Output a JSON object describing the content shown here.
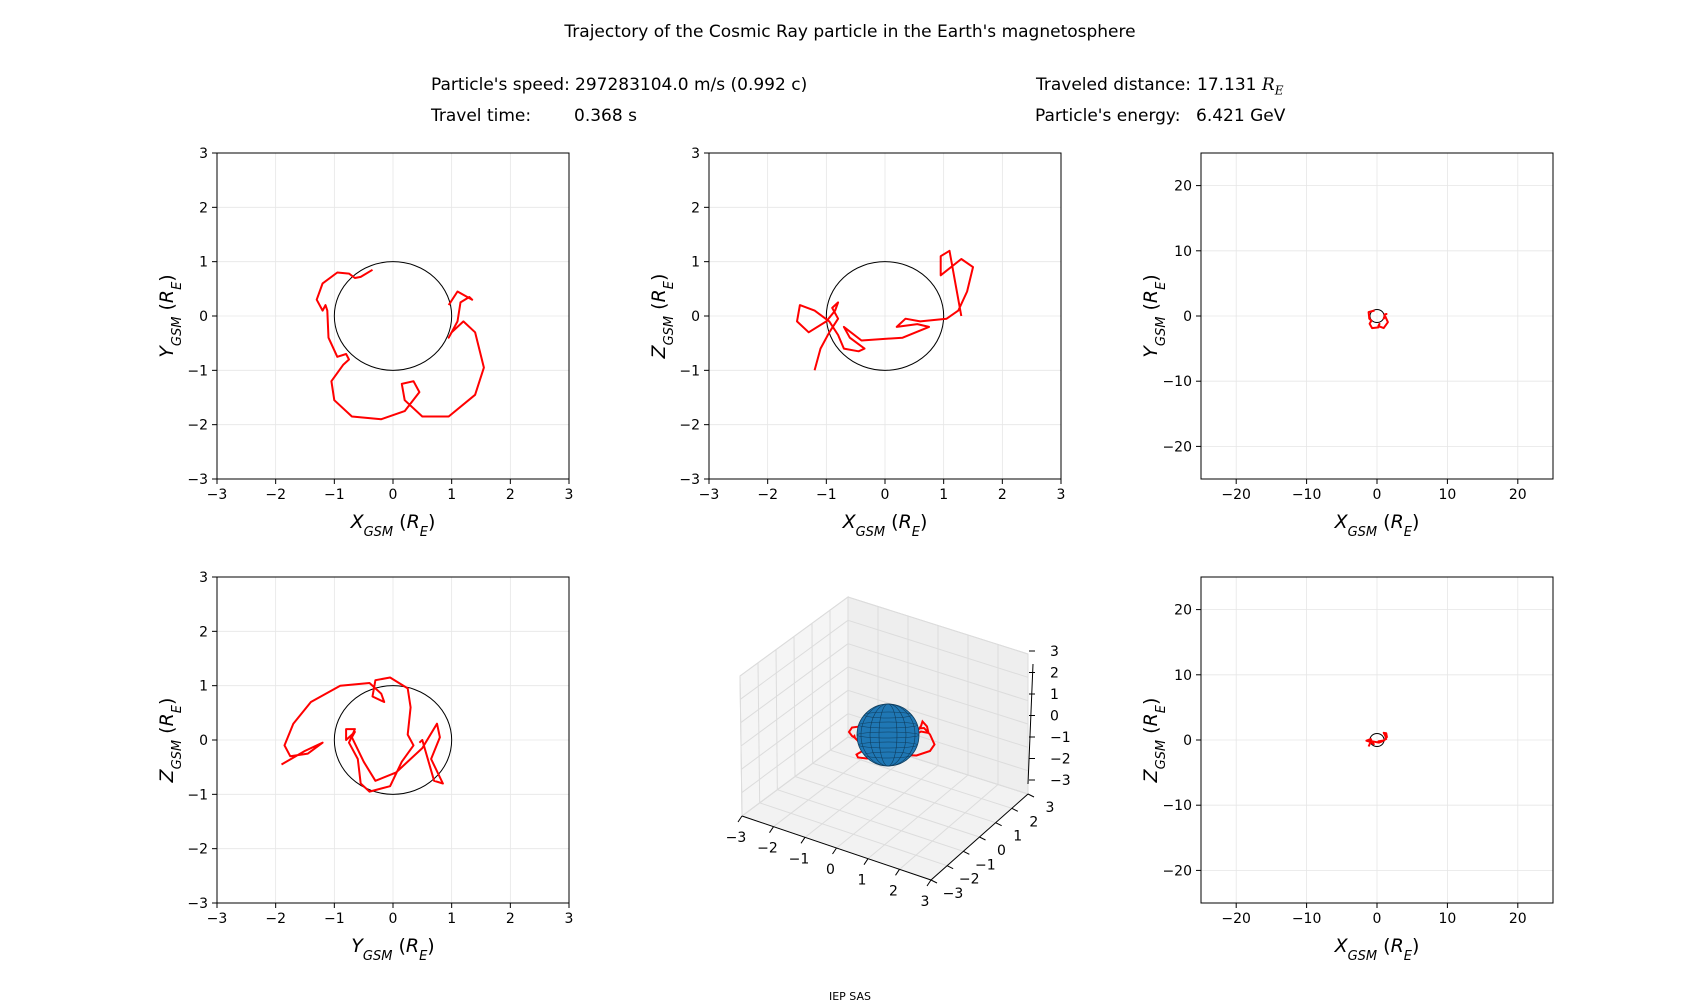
{
  "title": "Trajectory of the Cosmic Ray particle in the Earth's magnetosphere",
  "info": {
    "speed_label": "Particle's speed:",
    "speed_value": "297283104.0 m/s (0.992 c)",
    "time_label": "Travel time:",
    "time_value": "0.368 s",
    "distance_label": "Traveled distance:",
    "distance_value": "17.131",
    "energy_label": "Particle's energy:",
    "energy_value": "6.421 GeV"
  },
  "footer": "IEP SAS",
  "colors": {
    "trajectory": "#ff0000",
    "earth_outline": "#000000",
    "earth_sphere": "#1f77b4",
    "grid": "#e6e6e6"
  },
  "chart_data": [
    {
      "type": "line",
      "xlabel_base": "X",
      "xlabel_sub": "GSM",
      "ylabel_base": "Y",
      "ylabel_sub": "GSM",
      "unit_base": "R",
      "unit_sub": "E",
      "xlim": [
        -3,
        3
      ],
      "ylim": [
        -3,
        3
      ],
      "xticks": [
        -3,
        -2,
        -1,
        0,
        1,
        2,
        3
      ],
      "yticks": [
        -3,
        -2,
        -1,
        0,
        1,
        2,
        3
      ],
      "grid": true,
      "earth_radius": 1,
      "trajectory": [
        [
          -0.35,
          0.85
        ],
        [
          -0.55,
          0.72
        ],
        [
          -0.65,
          0.7
        ],
        [
          -0.75,
          0.78
        ],
        [
          -0.95,
          0.8
        ],
        [
          -1.2,
          0.6
        ],
        [
          -1.3,
          0.3
        ],
        [
          -1.2,
          0.1
        ],
        [
          -1.15,
          0.2
        ],
        [
          -1.12,
          0.1
        ],
        [
          -1.1,
          -0.4
        ],
        [
          -0.95,
          -0.75
        ],
        [
          -0.8,
          -0.7
        ],
        [
          -0.75,
          -0.8
        ],
        [
          -0.85,
          -0.9
        ],
        [
          -1.05,
          -1.2
        ],
        [
          -1.0,
          -1.55
        ],
        [
          -0.7,
          -1.85
        ],
        [
          -0.2,
          -1.9
        ],
        [
          0.2,
          -1.75
        ],
        [
          0.45,
          -1.4
        ],
        [
          0.35,
          -1.2
        ],
        [
          0.15,
          -1.25
        ],
        [
          0.2,
          -1.55
        ],
        [
          0.5,
          -1.85
        ],
        [
          0.95,
          -1.85
        ],
        [
          1.4,
          -1.45
        ],
        [
          1.55,
          -0.95
        ],
        [
          1.4,
          -0.3
        ],
        [
          1.2,
          -0.1
        ],
        [
          1.0,
          -0.3
        ],
        [
          0.95,
          -0.4
        ],
        [
          1.1,
          -0.1
        ],
        [
          1.15,
          0.25
        ],
        [
          1.3,
          0.35
        ],
        [
          1.35,
          0.3
        ],
        [
          1.1,
          0.45
        ],
        [
          0.95,
          0.2
        ]
      ]
    },
    {
      "type": "line",
      "xlabel_base": "X",
      "xlabel_sub": "GSM",
      "ylabel_base": "Z",
      "ylabel_sub": "GSM",
      "unit_base": "R",
      "unit_sub": "E",
      "xlim": [
        -3,
        3
      ],
      "ylim": [
        -3,
        3
      ],
      "xticks": [
        -3,
        -2,
        -1,
        0,
        1,
        2,
        3
      ],
      "yticks": [
        -3,
        -2,
        -1,
        0,
        1,
        2,
        3
      ],
      "grid": true,
      "earth_radius": 1,
      "trajectory": [
        [
          -1.2,
          -1.0
        ],
        [
          -1.1,
          -0.6
        ],
        [
          -0.95,
          -0.3
        ],
        [
          -0.8,
          -0.05
        ],
        [
          -0.9,
          0.15
        ],
        [
          -0.8,
          0.25
        ],
        [
          -0.85,
          0.1
        ],
        [
          -1.0,
          -0.1
        ],
        [
          -1.3,
          -0.3
        ],
        [
          -1.5,
          -0.1
        ],
        [
          -1.45,
          0.2
        ],
        [
          -1.2,
          0.1
        ],
        [
          -0.95,
          -0.1
        ],
        [
          -0.8,
          -0.35
        ],
        [
          -0.7,
          -0.6
        ],
        [
          -0.45,
          -0.65
        ],
        [
          -0.35,
          -0.6
        ],
        [
          -0.6,
          -0.4
        ],
        [
          -0.7,
          -0.2
        ],
        [
          -0.4,
          -0.45
        ],
        [
          0.3,
          -0.4
        ],
        [
          0.75,
          -0.2
        ],
        [
          0.55,
          -0.15
        ],
        [
          0.2,
          -0.2
        ],
        [
          0.35,
          -0.05
        ],
        [
          0.6,
          -0.1
        ],
        [
          1.05,
          -0.05
        ],
        [
          1.25,
          0.1
        ],
        [
          1.4,
          0.45
        ],
        [
          1.5,
          0.9
        ],
        [
          1.3,
          1.05
        ],
        [
          0.95,
          0.75
        ],
        [
          0.95,
          1.1
        ],
        [
          1.1,
          1.2
        ],
        [
          1.2,
          0.6
        ],
        [
          1.3,
          0.0
        ]
      ]
    },
    {
      "type": "line",
      "xlabel_base": "X",
      "xlabel_sub": "GSM",
      "ylabel_base": "Y",
      "ylabel_sub": "GSM",
      "unit_base": "R",
      "unit_sub": "E",
      "xlim": [
        -25,
        25
      ],
      "ylim": [
        -25,
        25
      ],
      "xticks": [
        -20,
        -10,
        0,
        10,
        20
      ],
      "yticks": [
        -20,
        -10,
        0,
        10,
        20
      ],
      "grid": true,
      "earth_radius": 1,
      "trajectory": [
        [
          -0.35,
          0.85
        ],
        [
          -1.2,
          0.6
        ],
        [
          -1.15,
          0.2
        ],
        [
          -1.1,
          -0.4
        ],
        [
          -0.8,
          -0.7
        ],
        [
          -1.05,
          -1.2
        ],
        [
          -0.7,
          -1.85
        ],
        [
          0.2,
          -1.75
        ],
        [
          0.35,
          -1.2
        ],
        [
          0.2,
          -1.55
        ],
        [
          0.95,
          -1.85
        ],
        [
          1.55,
          -0.95
        ],
        [
          1.2,
          -0.1
        ],
        [
          0.95,
          -0.4
        ],
        [
          1.15,
          0.25
        ],
        [
          1.35,
          0.3
        ],
        [
          0.95,
          0.2
        ]
      ]
    },
    {
      "type": "line",
      "xlabel_base": "Y",
      "xlabel_sub": "GSM",
      "ylabel_base": "Z",
      "ylabel_sub": "GSM",
      "unit_base": "R",
      "unit_sub": "E",
      "xlim": [
        -3,
        3
      ],
      "ylim": [
        -3,
        3
      ],
      "xticks": [
        -3,
        -2,
        -1,
        0,
        1,
        2,
        3
      ],
      "yticks": [
        -3,
        -2,
        -1,
        0,
        1,
        2,
        3
      ],
      "grid": true,
      "earth_radius": 1,
      "trajectory": [
        [
          -1.9,
          -0.45
        ],
        [
          -1.5,
          -0.2
        ],
        [
          -1.2,
          -0.05
        ],
        [
          -1.45,
          -0.25
        ],
        [
          -1.75,
          -0.3
        ],
        [
          -1.85,
          -0.1
        ],
        [
          -1.7,
          0.3
        ],
        [
          -1.4,
          0.7
        ],
        [
          -0.9,
          1.0
        ],
        [
          -0.4,
          1.05
        ],
        [
          -0.2,
          0.85
        ],
        [
          -0.15,
          0.7
        ],
        [
          -0.35,
          0.8
        ],
        [
          -0.3,
          1.1
        ],
        [
          -0.05,
          1.15
        ],
        [
          0.25,
          0.95
        ],
        [
          0.3,
          0.6
        ],
        [
          0.25,
          0.1
        ],
        [
          0.35,
          -0.1
        ],
        [
          0.15,
          -0.4
        ],
        [
          -0.05,
          -0.85
        ],
        [
          -0.4,
          -0.95
        ],
        [
          -0.55,
          -0.8
        ],
        [
          -0.6,
          -0.35
        ],
        [
          -0.75,
          -0.05
        ],
        [
          -0.65,
          0.2
        ],
        [
          -0.8,
          0.2
        ],
        [
          -0.8,
          0.0
        ],
        [
          -0.65,
          0.15
        ],
        [
          -0.7,
          0.05
        ],
        [
          -0.5,
          -0.4
        ],
        [
          -0.3,
          -0.75
        ],
        [
          0.05,
          -0.6
        ],
        [
          0.5,
          -0.15
        ],
        [
          0.75,
          0.3
        ],
        [
          0.8,
          0.05
        ],
        [
          0.65,
          -0.35
        ],
        [
          0.85,
          -0.8
        ],
        [
          0.7,
          -0.75
        ],
        [
          0.5,
          0.0
        ],
        [
          0.45,
          -0.05
        ]
      ]
    },
    {
      "type": "line",
      "dimensions": 3,
      "xticks": [
        -3,
        -2,
        -1,
        0,
        1,
        2,
        3
      ],
      "yticks": [
        -3,
        -2,
        -1,
        0,
        1,
        2,
        3
      ],
      "zticks": [
        -3,
        -2,
        -1,
        0,
        1,
        2,
        3
      ],
      "xlim": [
        -3,
        3
      ],
      "ylim": [
        -3,
        3
      ],
      "zlim": [
        -3,
        3
      ],
      "grid": true,
      "earth_radius": 1
    },
    {
      "type": "line",
      "xlabel_base": "X",
      "xlabel_sub": "GSM",
      "ylabel_base": "Z",
      "ylabel_sub": "GSM",
      "unit_base": "R",
      "unit_sub": "E",
      "xlim": [
        -25,
        25
      ],
      "ylim": [
        -25,
        25
      ],
      "xticks": [
        -20,
        -10,
        0,
        10,
        20
      ],
      "yticks": [
        -20,
        -10,
        0,
        10,
        20
      ],
      "grid": true,
      "earth_radius": 1,
      "trajectory": [
        [
          -1.2,
          -1.0
        ],
        [
          -0.8,
          -0.05
        ],
        [
          -0.9,
          0.15
        ],
        [
          -1.5,
          -0.1
        ],
        [
          -0.8,
          -0.35
        ],
        [
          -0.45,
          -0.65
        ],
        [
          -0.7,
          -0.2
        ],
        [
          0.3,
          -0.4
        ],
        [
          0.75,
          -0.2
        ],
        [
          0.2,
          -0.2
        ],
        [
          1.05,
          -0.05
        ],
        [
          1.4,
          0.45
        ],
        [
          1.3,
          1.05
        ],
        [
          0.95,
          1.1
        ],
        [
          1.2,
          0.6
        ],
        [
          1.3,
          0.0
        ]
      ]
    }
  ]
}
